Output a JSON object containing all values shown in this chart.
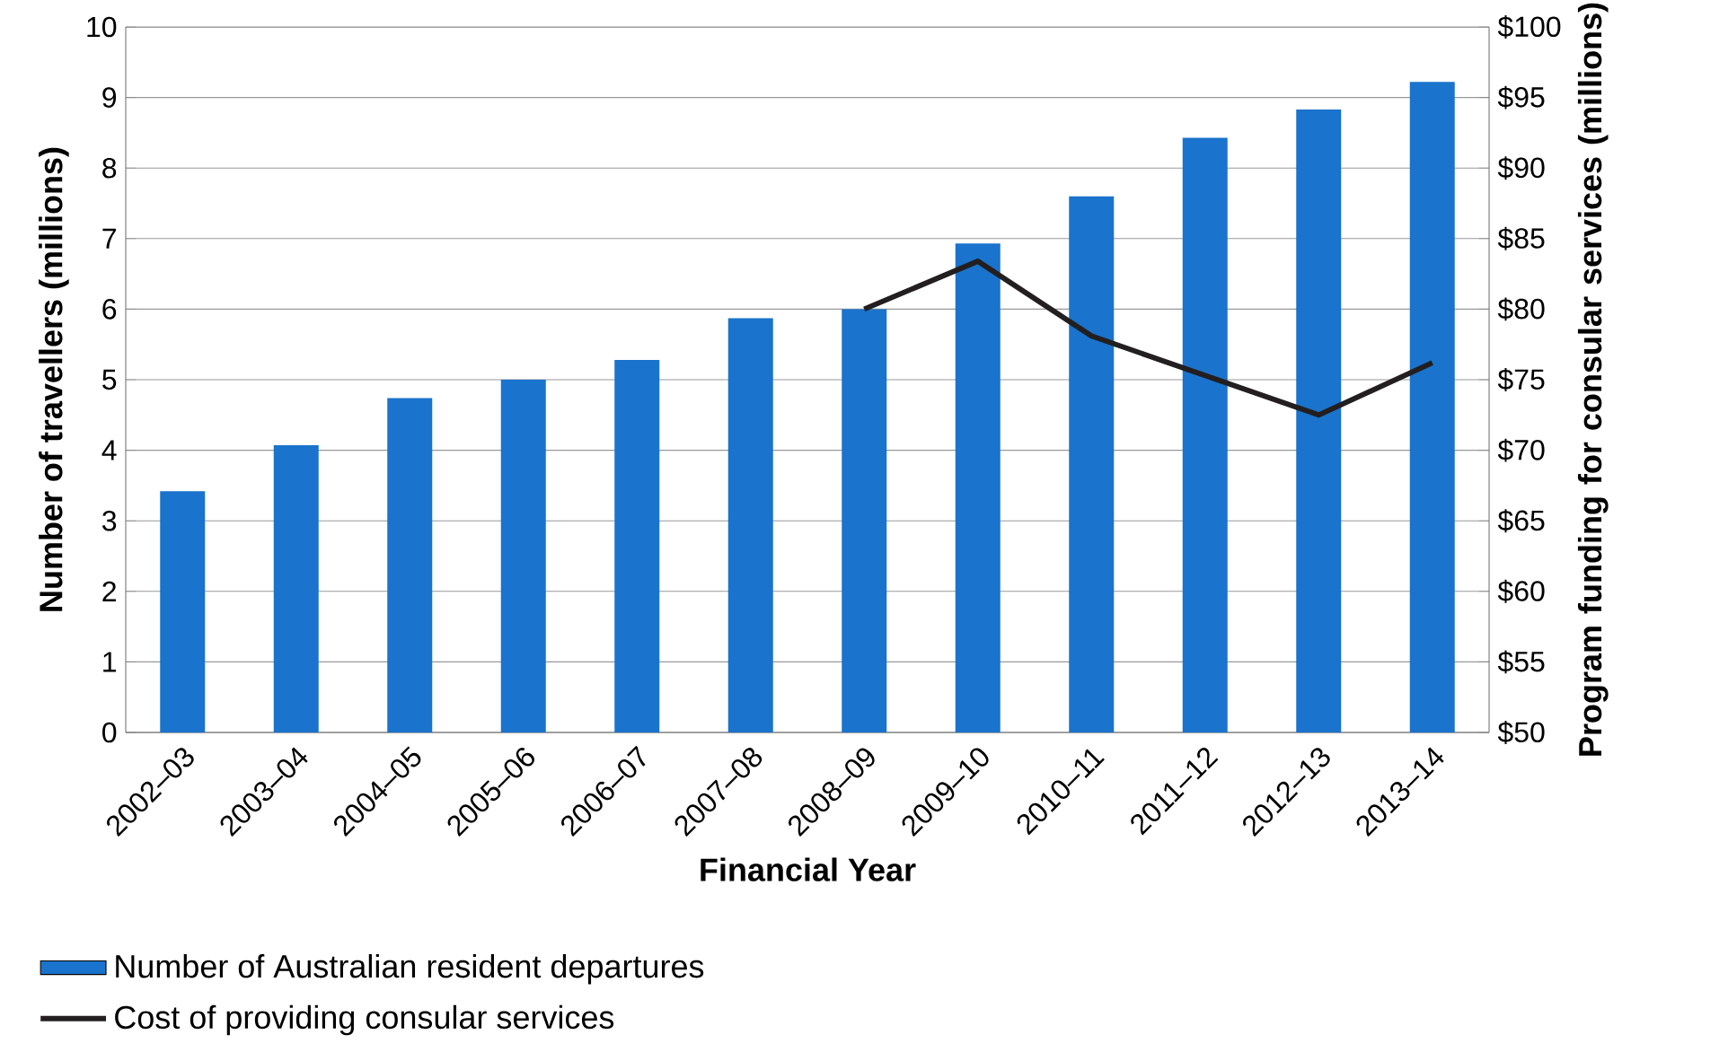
{
  "chart_data": {
    "type": "bar",
    "xlabel": "Financial Year",
    "ylabel": "Number of travellers (millions)",
    "y2label": "Program funding for consular services (millions)",
    "categories": [
      "2002–03",
      "2003–04",
      "2004–05",
      "2005–06",
      "2006–07",
      "2007–08",
      "2008–09",
      "2009–10",
      "2010–11",
      "2011–12",
      "2012–13",
      "2013–14"
    ],
    "series": [
      {
        "name": "Number of Australian resident departures",
        "color": "#1a73cc",
        "values": [
          3.42,
          4.07,
          4.74,
          5.0,
          5.28,
          5.87,
          6.0,
          6.93,
          7.6,
          8.43,
          8.83,
          9.22
        ]
      },
      {
        "name": "Cost of providing consular services",
        "type": "line",
        "axis": "y2",
        "color": "#231f20",
        "values": [
          null,
          null,
          null,
          null,
          null,
          null,
          80.0,
          83.4,
          78.1,
          75.3,
          72.5,
          76.2
        ]
      }
    ],
    "ylim": [
      0,
      10
    ],
    "yticks": [
      0,
      1,
      2,
      3,
      4,
      5,
      6,
      7,
      8,
      9,
      10
    ],
    "y2lim": [
      50,
      100
    ],
    "y2ticks": [
      {
        "value": 50,
        "label": "$50"
      },
      {
        "value": 55,
        "label": "$55"
      },
      {
        "value": 60,
        "label": "$60"
      },
      {
        "value": 65,
        "label": "$65"
      },
      {
        "value": 70,
        "label": "$70"
      },
      {
        "value": 75,
        "label": "$75"
      },
      {
        "value": 80,
        "label": "$80"
      },
      {
        "value": 85,
        "label": "$85"
      },
      {
        "value": 90,
        "label": "$90"
      },
      {
        "value": 95,
        "label": "$95"
      },
      {
        "value": 100,
        "label": "$100"
      }
    ],
    "grid": "y",
    "legend": "bottom left",
    "marker": "none",
    "line_style": "solid"
  }
}
